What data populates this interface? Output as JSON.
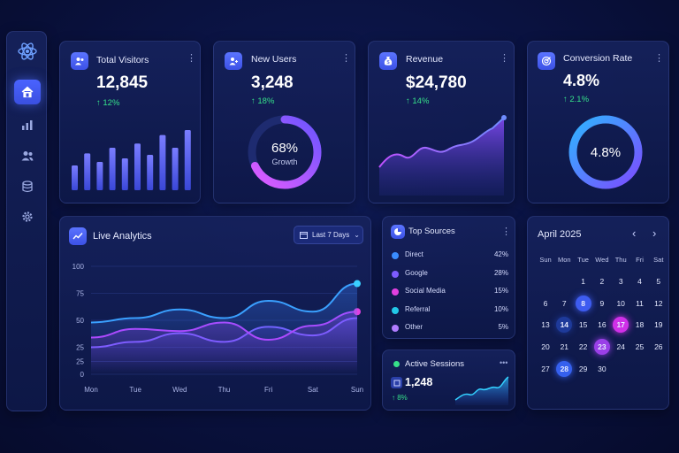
{
  "sidebar": {
    "logo_icon": "react-logo-icon",
    "items": [
      {
        "icon": "home-icon",
        "active": true
      },
      {
        "icon": "bar-chart-icon",
        "active": false
      },
      {
        "icon": "users-icon",
        "active": false
      },
      {
        "icon": "database-icon",
        "active": false
      },
      {
        "icon": "gear-icon",
        "active": false
      }
    ]
  },
  "stats": {
    "total_visitors": {
      "title": "Total Visitors",
      "value": "12,845",
      "delta": "↑ 12%",
      "icon": "users-icon",
      "bars": [
        0.35,
        0.52,
        0.4,
        0.6,
        0.45,
        0.66,
        0.5,
        0.78,
        0.6,
        0.85
      ]
    },
    "new_users": {
      "title": "New Users",
      "value": "3,248",
      "delta": "↑ 18%",
      "icon": "user-add-icon",
      "ring_percent": "68%",
      "ring_label": "Growth",
      "ring_fraction": 0.68
    },
    "revenue": {
      "title": "Revenue",
      "value": "$24,780",
      "delta": "↑ 14%",
      "icon": "money-bag-icon"
    },
    "conversion_rate": {
      "title": "Conversion Rate",
      "value": "4.8%",
      "delta": "↑ 2.1%",
      "icon": "target-icon",
      "ring_value": "4.8%"
    }
  },
  "live_analytics": {
    "title": "Live Analytics",
    "range_label": "Last 7 Days",
    "chart_data": {
      "type": "line",
      "categories": [
        "Mon",
        "Tue",
        "Wed",
        "Thu",
        "Fri",
        "Sat",
        "Sun"
      ],
      "y_ticks": [
        "100",
        "75",
        "50",
        "25",
        "25",
        "0"
      ],
      "series": [
        {
          "color": "#3aa0ff",
          "values": [
            48,
            52,
            60,
            52,
            68,
            58,
            84
          ]
        },
        {
          "color": "#c040ff",
          "values": [
            34,
            42,
            40,
            48,
            32,
            45,
            58
          ]
        },
        {
          "color": "#7e5cff",
          "values": [
            25,
            30,
            38,
            30,
            44,
            36,
            52
          ]
        }
      ]
    }
  },
  "top_sources": {
    "title": "Top Sources",
    "items": [
      {
        "label": "Direct",
        "value": "42%",
        "color": "#3a8dff"
      },
      {
        "label": "Google",
        "value": "28%",
        "color": "#7d5cff"
      },
      {
        "label": "Social Media",
        "value": "15%",
        "color": "#e040e0"
      },
      {
        "label": "Referral",
        "value": "10%",
        "color": "#22c8e8"
      },
      {
        "label": "Other",
        "value": "5%",
        "color": "#b07cff"
      }
    ]
  },
  "active_sessions": {
    "title": "Active Sessions",
    "value": "1,248",
    "delta": "↑ 8%",
    "more": "•••"
  },
  "calendar": {
    "month": "April 2025",
    "weekdays": [
      "Sun",
      "Mon",
      "Tue",
      "Wed",
      "Thu",
      "Fri",
      "Sat"
    ],
    "weeks": [
      [
        "",
        "",
        "1",
        "2",
        "3",
        "4",
        "5"
      ],
      [
        "6",
        "7",
        "8",
        "9",
        "10",
        "11",
        "12"
      ],
      [
        "13",
        "14",
        "15",
        "16",
        "17",
        "18",
        "19"
      ],
      [
        "20",
        "21",
        "22",
        "23",
        "24",
        "25",
        "26"
      ],
      [
        "27",
        "28",
        "29",
        "30",
        "",
        "",
        ""
      ]
    ],
    "highlights": {
      "8": "#3e5cf0",
      "14": "#1e3a9a",
      "17": "#d030e8",
      "23": "#9a3fe8",
      "28": "#3560ee"
    }
  },
  "colors": {
    "accent": "#4a63ff",
    "positive": "#36e08a",
    "pink": "#d84cff"
  }
}
